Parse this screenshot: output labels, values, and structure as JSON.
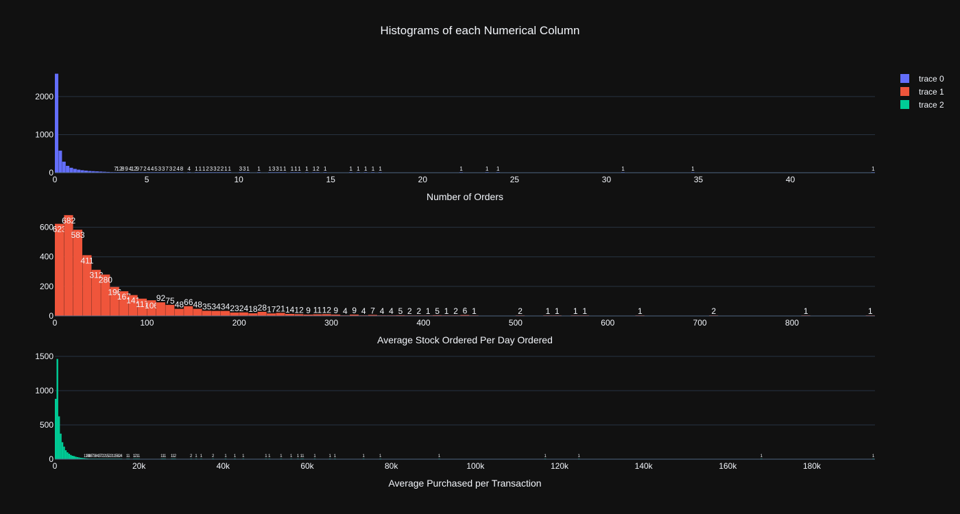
{
  "figure": {
    "title": "Histograms of each Numerical Column",
    "background": "#111111"
  },
  "legend": {
    "items": [
      {
        "label": "trace 0",
        "color": "#636efa"
      },
      {
        "label": "trace 1",
        "color": "#EF553B"
      },
      {
        "label": "trace 2",
        "color": "#00cc96"
      }
    ]
  },
  "chart_data": [
    {
      "type": "bar",
      "series_name": "trace 0",
      "color": "#636efa",
      "xlabel": "Number of Orders",
      "xlim": [
        0,
        44.6
      ],
      "ylim": [
        0,
        2700
      ],
      "xticks": [
        0,
        5,
        10,
        15,
        20,
        25,
        30,
        35,
        40
      ],
      "xtick_labels": [
        "0",
        "5",
        "10",
        "15",
        "20",
        "25",
        "30",
        "35",
        "40"
      ],
      "yticks": [
        0,
        1000,
        2000
      ],
      "ytick_labels": [
        "0",
        "1000",
        "2000"
      ],
      "bin_width": 0.2,
      "bins": [
        [
          0.1,
          2600
        ],
        [
          0.3,
          580
        ],
        [
          0.5,
          290
        ],
        [
          0.7,
          180
        ],
        [
          0.9,
          130
        ],
        [
          1.1,
          100
        ],
        [
          1.3,
          80
        ],
        [
          1.5,
          65
        ],
        [
          1.7,
          55
        ],
        [
          1.9,
          45
        ],
        [
          2.1,
          40
        ],
        [
          2.3,
          35
        ],
        [
          2.5,
          30
        ],
        [
          2.7,
          25
        ],
        [
          2.9,
          20
        ],
        [
          3.1,
          15
        ],
        [
          3.3,
          7
        ],
        [
          3.5,
          12
        ],
        [
          3.7,
          8
        ],
        [
          3.9,
          9
        ],
        [
          4.1,
          4
        ],
        [
          4.3,
          12
        ],
        [
          4.5,
          9
        ],
        [
          4.7,
          7
        ],
        [
          4.9,
          2
        ],
        [
          5.1,
          4
        ],
        [
          5.3,
          4
        ],
        [
          5.5,
          5
        ],
        [
          5.7,
          3
        ],
        [
          5.9,
          3
        ],
        [
          6.1,
          7
        ],
        [
          6.3,
          3
        ],
        [
          6.5,
          2
        ],
        [
          6.7,
          4
        ],
        [
          6.9,
          8
        ],
        [
          7.3,
          4
        ],
        [
          7.7,
          1
        ],
        [
          7.9,
          1
        ],
        [
          8.1,
          1
        ],
        [
          8.3,
          2
        ],
        [
          8.5,
          3
        ],
        [
          8.7,
          3
        ],
        [
          8.9,
          2
        ],
        [
          9.1,
          2
        ],
        [
          9.3,
          1
        ],
        [
          9.5,
          1
        ],
        [
          10.1,
          3
        ],
        [
          10.3,
          3
        ],
        [
          10.5,
          1
        ],
        [
          11.1,
          1
        ],
        [
          11.7,
          1
        ],
        [
          11.9,
          3
        ],
        [
          12.1,
          3
        ],
        [
          12.3,
          1
        ],
        [
          12.5,
          1
        ],
        [
          12.9,
          1
        ],
        [
          13.1,
          1
        ],
        [
          13.3,
          1
        ],
        [
          13.7,
          1
        ],
        [
          14.1,
          1
        ],
        [
          14.3,
          2
        ],
        [
          14.7,
          1
        ],
        [
          16.1,
          1
        ],
        [
          16.5,
          1
        ],
        [
          16.9,
          1
        ],
        [
          17.3,
          1
        ],
        [
          17.7,
          1
        ],
        [
          22.1,
          1
        ],
        [
          23.5,
          1
        ],
        [
          24.1,
          1
        ],
        [
          30.9,
          1
        ],
        [
          34.7,
          1
        ],
        [
          44.5,
          1
        ]
      ]
    },
    {
      "type": "bar",
      "series_name": "trace 1",
      "color": "#EF553B",
      "xlabel": "Average Stock Ordered Per Day Ordered",
      "xlim": [
        0,
        890
      ],
      "ylim": [
        0,
        700
      ],
      "xticks": [
        0,
        100,
        200,
        300,
        400,
        500,
        600,
        700,
        800
      ],
      "xtick_labels": [
        "0",
        "100",
        "200",
        "300",
        "400",
        "500",
        "600",
        "700",
        "800"
      ],
      "yticks": [
        0,
        200,
        400,
        600
      ],
      "ytick_labels": [
        "0",
        "200",
        "400",
        "600"
      ],
      "bin_width": 10,
      "bins": [
        [
          5,
          623
        ],
        [
          15,
          682
        ],
        [
          25,
          583
        ],
        [
          35,
          411
        ],
        [
          45,
          312
        ],
        [
          55,
          280
        ],
        [
          65,
          196
        ],
        [
          75,
          167
        ],
        [
          85,
          141
        ],
        [
          95,
          117
        ],
        [
          105,
          106
        ],
        [
          115,
          92
        ],
        [
          125,
          75
        ],
        [
          135,
          48
        ],
        [
          145,
          66
        ],
        [
          155,
          48
        ],
        [
          165,
          35
        ],
        [
          175,
          34
        ],
        [
          185,
          34
        ],
        [
          195,
          23
        ],
        [
          205,
          24
        ],
        [
          215,
          18
        ],
        [
          225,
          28
        ],
        [
          235,
          17
        ],
        [
          245,
          21
        ],
        [
          255,
          14
        ],
        [
          265,
          12
        ],
        [
          275,
          9
        ],
        [
          285,
          11
        ],
        [
          295,
          12
        ],
        [
          305,
          9
        ],
        [
          315,
          4
        ],
        [
          325,
          9
        ],
        [
          335,
          4
        ],
        [
          345,
          7
        ],
        [
          355,
          4
        ],
        [
          365,
          4
        ],
        [
          375,
          5
        ],
        [
          385,
          2
        ],
        [
          395,
          2
        ],
        [
          405,
          1
        ],
        [
          415,
          5
        ],
        [
          425,
          1
        ],
        [
          435,
          2
        ],
        [
          445,
          6
        ],
        [
          455,
          1
        ],
        [
          505,
          2
        ],
        [
          535,
          1
        ],
        [
          545,
          1
        ],
        [
          565,
          1
        ],
        [
          575,
          1
        ],
        [
          635,
          1
        ],
        [
          715,
          2
        ],
        [
          815,
          1
        ],
        [
          885,
          1
        ]
      ]
    },
    {
      "type": "bar",
      "series_name": "trace 2",
      "color": "#00cc96",
      "xlabel": "Average Purchased per Transaction",
      "xlim": [
        0,
        195000
      ],
      "ylim": [
        0,
        1550
      ],
      "xticks": [
        0,
        20000,
        40000,
        60000,
        80000,
        100000,
        120000,
        140000,
        160000,
        180000
      ],
      "xtick_labels": [
        "0",
        "20k",
        "40k",
        "60k",
        "80k",
        "100k",
        "120k",
        "140k",
        "160k",
        "180k"
      ],
      "yticks": [
        0,
        500,
        1000,
        1500
      ],
      "ytick_labels": [
        "0",
        "500",
        "1000",
        "1500"
      ],
      "bin_width": 400,
      "bins": [
        [
          200,
          880
        ],
        [
          600,
          1463
        ],
        [
          1000,
          625
        ],
        [
          1400,
          373
        ],
        [
          1800,
          247
        ],
        [
          2200,
          183
        ],
        [
          2600,
          130
        ],
        [
          3000,
          100
        ],
        [
          3400,
          80
        ],
        [
          3800,
          62
        ],
        [
          4200,
          50
        ],
        [
          4600,
          45
        ],
        [
          5000,
          35
        ],
        [
          5400,
          30
        ],
        [
          5800,
          25
        ],
        [
          6200,
          20
        ],
        [
          6600,
          18
        ],
        [
          7000,
          15
        ],
        [
          7400,
          12
        ],
        [
          7800,
          10
        ],
        [
          8200,
          8
        ],
        [
          8600,
          8
        ],
        [
          9000,
          7
        ],
        [
          9400,
          3
        ],
        [
          9800,
          8
        ],
        [
          10200,
          4
        ],
        [
          10600,
          3
        ],
        [
          11000,
          7
        ],
        [
          11400,
          2
        ],
        [
          11800,
          2
        ],
        [
          12200,
          1
        ],
        [
          12600,
          5
        ],
        [
          13000,
          2
        ],
        [
          13400,
          2
        ],
        [
          13800,
          1
        ],
        [
          14200,
          1
        ],
        [
          14600,
          5
        ],
        [
          15000,
          8
        ],
        [
          15400,
          2
        ],
        [
          15800,
          4
        ],
        [
          17200,
          1
        ],
        [
          17600,
          1
        ],
        [
          18800,
          1
        ],
        [
          19200,
          2
        ],
        [
          19600,
          1
        ],
        [
          20000,
          1
        ],
        [
          25400,
          1
        ],
        [
          25800,
          1
        ],
        [
          26200,
          1
        ],
        [
          27800,
          1
        ],
        [
          28200,
          1
        ],
        [
          28600,
          2
        ],
        [
          32400,
          2
        ],
        [
          33600,
          1
        ],
        [
          34800,
          1
        ],
        [
          37600,
          2
        ],
        [
          40600,
          1
        ],
        [
          42800,
          1
        ],
        [
          44800,
          1
        ],
        [
          50200,
          1
        ],
        [
          51000,
          1
        ],
        [
          53800,
          1
        ],
        [
          56200,
          1
        ],
        [
          57800,
          1
        ],
        [
          58600,
          1
        ],
        [
          59000,
          1
        ],
        [
          61800,
          1
        ],
        [
          65400,
          1
        ],
        [
          66600,
          1
        ],
        [
          73400,
          1
        ],
        [
          77400,
          1
        ],
        [
          91400,
          1
        ],
        [
          116600,
          1
        ],
        [
          124600,
          1
        ],
        [
          168000,
          1
        ],
        [
          194600,
          1
        ]
      ]
    }
  ]
}
